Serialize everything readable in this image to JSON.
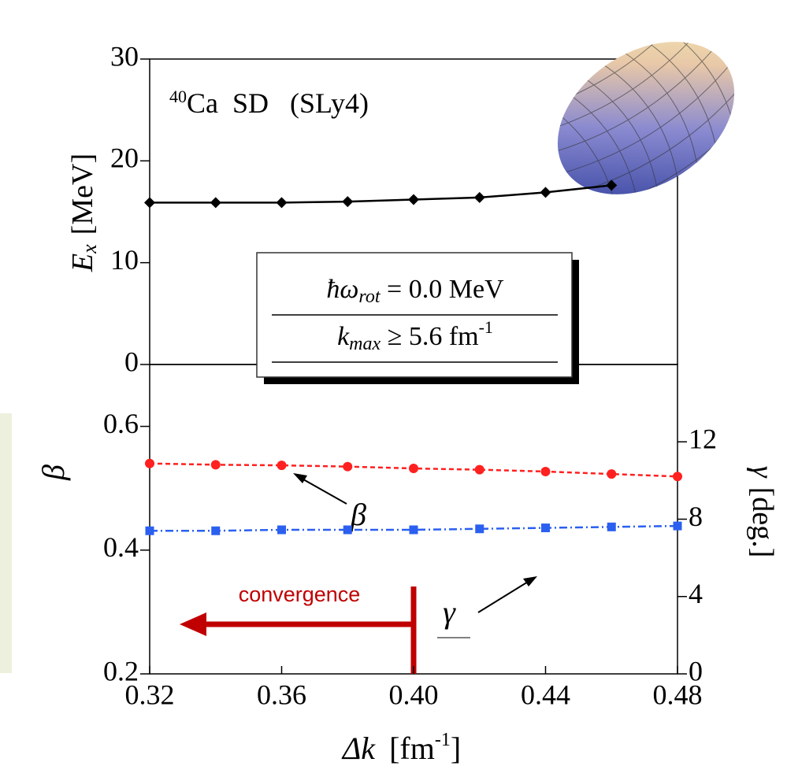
{
  "chart_data": [
    {
      "type": "line",
      "annotation": {
        "mass_number": "40",
        "text": "Ca  SD   (SLy4)"
      },
      "box": {
        "line1_a": "ħω",
        "line1_sub": "rot",
        "line1_b": " = 0.0 MeV",
        "line2_a": "k",
        "line2_sub": "max",
        "line2_b": " ≥ 5.6 fm",
        "line2_sup": "-1"
      },
      "ylabel": {
        "symbol": "E",
        "sub": "x",
        "unit": "[MeV]"
      },
      "x": [
        0.32,
        0.34,
        0.36,
        0.38,
        0.4,
        0.42,
        0.44,
        0.46
      ],
      "series": [
        {
          "color": "#000000",
          "marker": "diamond",
          "values": [
            15.9,
            15.9,
            15.9,
            16.0,
            16.2,
            16.4,
            16.9,
            17.6
          ]
        }
      ],
      "xlim": [
        0.32,
        0.48
      ],
      "ylim": [
        0,
        30
      ],
      "yticks": [
        0,
        10,
        20,
        30
      ]
    },
    {
      "type": "line",
      "xlabel": {
        "symbol": "Δk",
        "unit_a": "[fm",
        "unit_sup": "-1",
        "unit_b": "]"
      },
      "ylabel": "β",
      "y2label": {
        "symbol": "γ",
        "unit": "[deg.]"
      },
      "annotations": {
        "beta": "β",
        "gamma": "γ",
        "convergence": "convergence"
      },
      "x": [
        0.32,
        0.34,
        0.36,
        0.38,
        0.4,
        0.42,
        0.44,
        0.46,
        0.48
      ],
      "series": [
        {
          "color": "#ff2020",
          "marker": "circle",
          "dash": "6,4",
          "values": [
            0.54,
            0.538,
            0.537,
            0.535,
            0.532,
            0.53,
            0.527,
            0.523,
            0.519
          ]
        },
        {
          "color": "#2a5ff0",
          "marker": "square",
          "dash": "10,4,2,4",
          "axis": "y2",
          "values": [
            7.4,
            7.4,
            7.45,
            7.45,
            7.45,
            7.5,
            7.55,
            7.6,
            7.65
          ]
        }
      ],
      "xlim": [
        0.32,
        0.48
      ],
      "xticks": [
        0.32,
        0.36,
        {
          "value": 0.4,
          "label": "0.40"
        },
        0.44,
        0.48
      ],
      "ylim": [
        0.2,
        0.7
      ],
      "yticks": [
        0.2,
        0.4,
        0.6
      ],
      "y2lim": [
        0,
        16
      ],
      "y2ticks": [
        0,
        4,
        8,
        12
      ]
    }
  ]
}
